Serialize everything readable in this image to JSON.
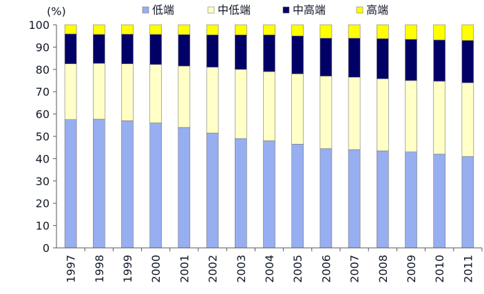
{
  "chart_data": {
    "type": "bar",
    "stacked": true,
    "unit_label": "(%)",
    "categories": [
      "1997",
      "1998",
      "1999",
      "2000",
      "2001",
      "2002",
      "2003",
      "2004",
      "2005",
      "2006",
      "2007",
      "2008",
      "2009",
      "2010",
      "2011"
    ],
    "series": [
      {
        "name": "低端",
        "color": "#97aef0",
        "values": [
          57.5,
          57.7,
          57.0,
          56.0,
          54.0,
          51.5,
          49.0,
          48.0,
          46.5,
          44.5,
          44.0,
          43.5,
          43.0,
          42.0,
          41.0
        ]
      },
      {
        "name": "中低端",
        "color": "#ffffc6",
        "values": [
          25.0,
          25.0,
          25.5,
          26.2,
          27.5,
          29.5,
          31.0,
          31.0,
          31.5,
          32.5,
          32.5,
          32.3,
          32.0,
          32.7,
          33.0
        ]
      },
      {
        "name": "中高端",
        "color": "#000066",
        "values": [
          13.4,
          13.0,
          13.3,
          13.5,
          14.1,
          14.5,
          15.5,
          16.5,
          17.0,
          17.0,
          17.5,
          18.0,
          18.5,
          18.5,
          19.0
        ]
      },
      {
        "name": "高端",
        "color": "#ffff00",
        "values": [
          4.1,
          4.3,
          4.2,
          4.3,
          4.4,
          4.5,
          4.5,
          4.5,
          5.0,
          6.0,
          6.0,
          6.2,
          6.5,
          6.8,
          7.0
        ]
      }
    ],
    "ylim": [
      0,
      100
    ],
    "yticks": [
      "0",
      "10",
      "20",
      "30",
      "40",
      "50",
      "60",
      "70",
      "80",
      "90",
      "100"
    ],
    "grid": false,
    "legend_position": "top"
  }
}
